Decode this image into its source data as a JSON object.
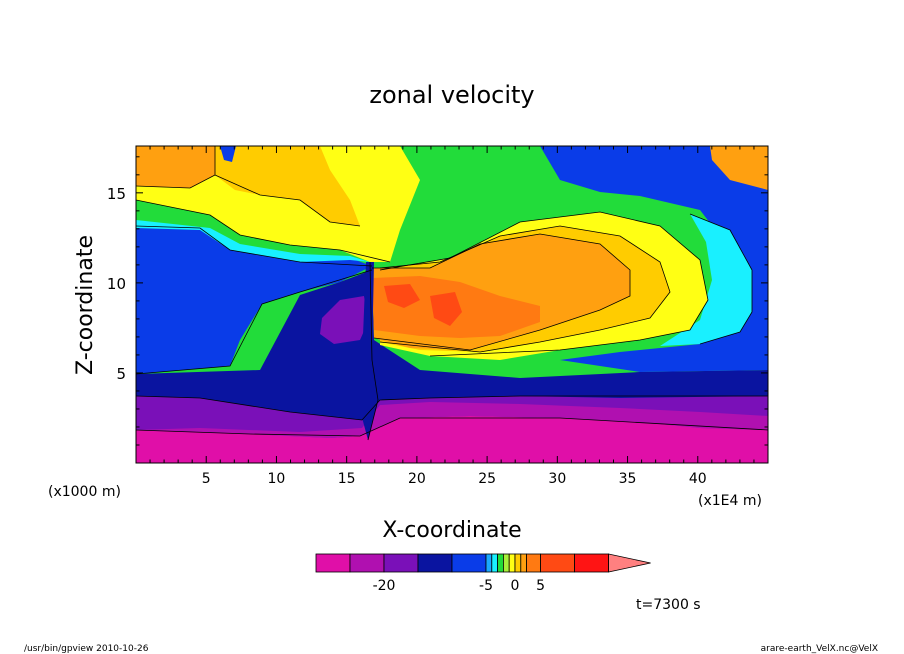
{
  "chart_data": {
    "type": "heatmap",
    "title": "zonal velocity",
    "xlabel": "X-coordinate",
    "ylabel": "Z-coordinate",
    "x_unit_label": "(x1E4 m)",
    "y_unit_label": "(x1000 m)",
    "xlim": [
      0,
      45
    ],
    "ylim": [
      0,
      17.6
    ],
    "x_ticks": [
      5,
      10,
      15,
      20,
      25,
      30,
      35,
      40
    ],
    "x_tick_labels": [
      "5",
      "10",
      "15",
      "20",
      "25",
      "30",
      "35",
      "40"
    ],
    "y_ticks": [
      5,
      10,
      15
    ],
    "y_tick_labels": [
      "5",
      "10",
      "15"
    ],
    "grid": false,
    "colorbar": {
      "levels": [
        -30,
        -25,
        -20,
        -15,
        -10,
        -5,
        -4,
        -3,
        -2,
        -1,
        0,
        1,
        2,
        5,
        10,
        15,
        20
      ],
      "colors": [
        "#e00fa8",
        "#b010b0",
        "#7a10b8",
        "#0a14a0",
        "#0a3ce8",
        "#1aa8ff",
        "#19f0ff",
        "#22dc3a",
        "#a8f03a",
        "#ffff14",
        "#ffcc00",
        "#ffa010",
        "#ff7a12",
        "#ff4a14",
        "#ff1414",
        "#ff8080"
      ],
      "tick_values": [
        -20,
        -5,
        0,
        5
      ],
      "tick_labels": [
        "-20",
        "-5",
        "0",
        "5"
      ],
      "extend": "max"
    },
    "annotation": "t=7300 s"
  },
  "footer": {
    "left": "/usr/bin/gpview  2010-10-26",
    "right": "arare-earth_VelX.nc@VelX"
  }
}
